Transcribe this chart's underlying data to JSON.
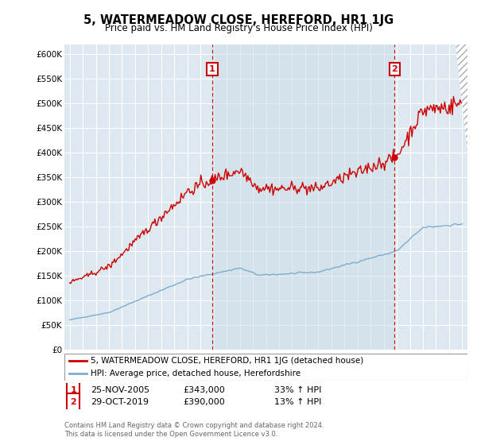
{
  "title": "5, WATERMEADOW CLOSE, HEREFORD, HR1 1JG",
  "subtitle": "Price paid vs. HM Land Registry's House Price Index (HPI)",
  "ylabel_ticks": [
    "£0",
    "£50K",
    "£100K",
    "£150K",
    "£200K",
    "£250K",
    "£300K",
    "£350K",
    "£400K",
    "£450K",
    "£500K",
    "£550K",
    "£600K"
  ],
  "ylim": [
    0,
    620000
  ],
  "ytick_vals": [
    0,
    50000,
    100000,
    150000,
    200000,
    250000,
    300000,
    350000,
    400000,
    450000,
    500000,
    550000,
    600000
  ],
  "t1": 2005.9,
  "t2": 2019.83,
  "price1": 343000,
  "price2": 390000,
  "legend_line1": "5, WATERMEADOW CLOSE, HEREFORD, HR1 1JG (detached house)",
  "legend_line2": "HPI: Average price, detached house, Herefordshire",
  "footer1": "Contains HM Land Registry data © Crown copyright and database right 2024.",
  "footer2": "This data is licensed under the Open Government Licence v3.0.",
  "line_color": "#cc0000",
  "hpi_color": "#7aadcf",
  "vline_color": "#cc0000",
  "bg_color": "#dde8f0",
  "highlight_color": "#ccdde8",
  "grid_color": "#ffffff",
  "annotation_box_color": "#cc0000",
  "date_str1": "25-NOV-2005",
  "date_str2": "29-OCT-2019",
  "pct1": "33% ↑ HPI",
  "pct2": "13% ↑ HPI"
}
